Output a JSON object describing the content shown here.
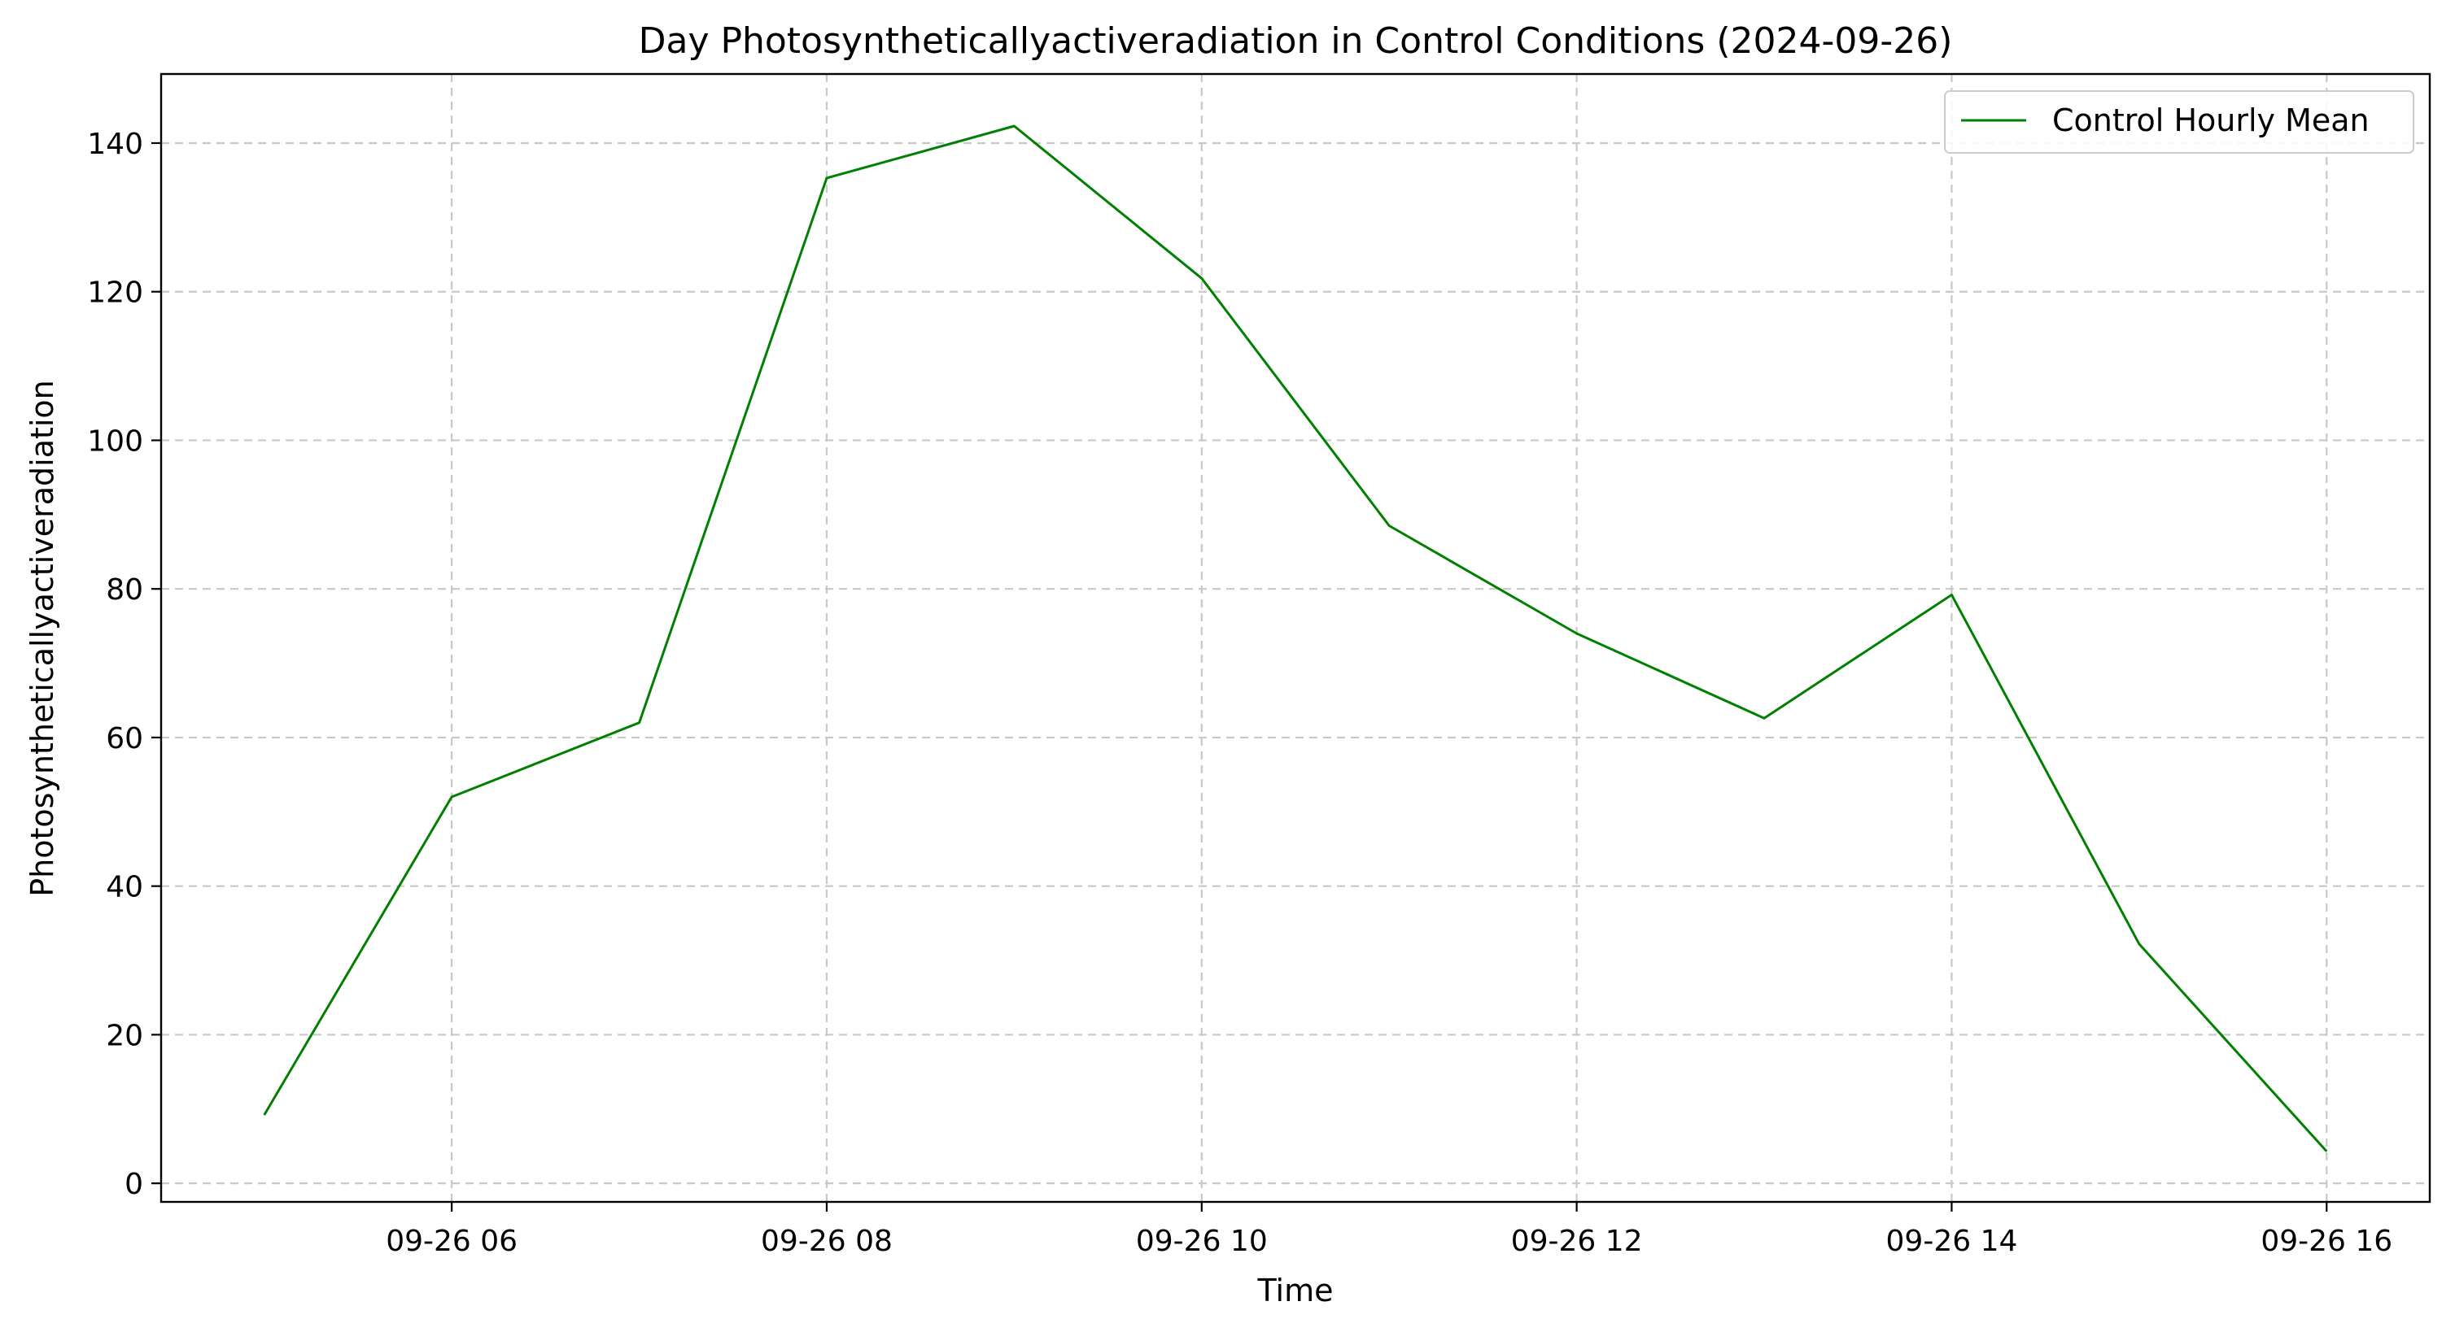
{
  "chart_data": {
    "type": "line",
    "title": "Day Photosyntheticallyactiveradiation in Control Conditions (2024-09-26)",
    "xlabel": "Time",
    "ylabel": "Photosyntheticallyactiveradiation",
    "x_ticks": [
      "09-26 06",
      "09-26 08",
      "09-26 10",
      "09-26 12",
      "09-26 14",
      "09-26 16"
    ],
    "y_ticks": [
      0,
      20,
      40,
      60,
      80,
      100,
      120,
      140
    ],
    "x_tick_hours": [
      6,
      8,
      10,
      12,
      14,
      16
    ],
    "xlim": [
      "2024-09-26 04:27",
      "2024-09-26 16:33"
    ],
    "ylim": [
      -2.5,
      149.3
    ],
    "grid": true,
    "legend_position": "top-right",
    "series": [
      {
        "name": "Control Hourly Mean",
        "color": "#008000",
        "x": [
          "2024-09-26 05:00",
          "2024-09-26 06:00",
          "2024-09-26 07:00",
          "2024-09-26 08:00",
          "2024-09-26 09:00",
          "2024-09-26 10:00",
          "2024-09-26 11:00",
          "2024-09-26 12:00",
          "2024-09-26 13:00",
          "2024-09-26 14:00",
          "2024-09-26 15:00",
          "2024-09-26 16:00"
        ],
        "values": [
          9.2,
          52.0,
          62.0,
          135.3,
          142.3,
          121.8,
          88.5,
          74.0,
          62.6,
          79.2,
          32.2,
          4.3
        ]
      }
    ]
  }
}
